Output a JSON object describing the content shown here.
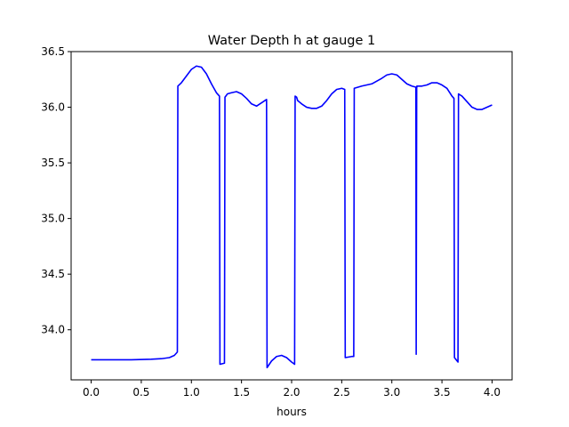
{
  "chart_data": {
    "type": "line",
    "title": "Water Depth h at gauge 1",
    "xlabel": "hours",
    "ylabel": "",
    "xlim": [
      -0.2,
      4.2
    ],
    "ylim": [
      33.55,
      36.5
    ],
    "x_ticks": [
      0.0,
      0.5,
      1.0,
      1.5,
      2.0,
      2.5,
      3.0,
      3.5,
      4.0
    ],
    "x_tick_labels": [
      "0.0",
      "0.5",
      "1.0",
      "1.5",
      "2.0",
      "2.5",
      "3.0",
      "3.5",
      "4.0"
    ],
    "y_ticks": [
      34.0,
      34.5,
      35.0,
      35.5,
      36.0,
      36.5
    ],
    "y_tick_labels": [
      "34.0",
      "34.5",
      "35.0",
      "35.5",
      "36.0",
      "36.5"
    ],
    "grid": false,
    "colors": {
      "series": "#0000ff"
    },
    "series": [
      {
        "name": "",
        "x": [
          0.0,
          0.2,
          0.4,
          0.6,
          0.7,
          0.78,
          0.83,
          0.86,
          0.865,
          0.9,
          0.95,
          1.0,
          1.05,
          1.1,
          1.15,
          1.2,
          1.25,
          1.28,
          1.285,
          1.33,
          1.335,
          1.36,
          1.4,
          1.45,
          1.5,
          1.55,
          1.6,
          1.65,
          1.7,
          1.75,
          1.755,
          1.8,
          1.85,
          1.9,
          1.95,
          2.0,
          2.03,
          2.035,
          2.05,
          2.06,
          2.1,
          2.15,
          2.2,
          2.25,
          2.3,
          2.35,
          2.4,
          2.45,
          2.5,
          2.53,
          2.535,
          2.6,
          2.62,
          2.625,
          2.7,
          2.8,
          2.9,
          2.95,
          3.0,
          3.05,
          3.1,
          3.15,
          3.2,
          3.24,
          3.243,
          3.248,
          3.25,
          3.3,
          3.35,
          3.4,
          3.45,
          3.5,
          3.55,
          3.6,
          3.62,
          3.625,
          3.66,
          3.665,
          3.7,
          3.75,
          3.8,
          3.85,
          3.9,
          3.95,
          4.0
        ],
        "y": [
          33.73,
          33.73,
          33.73,
          33.735,
          33.74,
          33.75,
          33.77,
          33.8,
          36.19,
          36.22,
          36.28,
          36.34,
          36.37,
          36.36,
          36.3,
          36.21,
          36.13,
          36.1,
          33.69,
          33.7,
          36.09,
          36.12,
          36.13,
          36.14,
          36.12,
          36.08,
          36.03,
          36.01,
          36.04,
          36.07,
          33.66,
          33.72,
          33.76,
          33.77,
          33.75,
          33.71,
          33.69,
          36.1,
          36.09,
          36.06,
          36.03,
          36.0,
          35.99,
          35.99,
          36.01,
          36.06,
          36.12,
          36.16,
          36.17,
          36.16,
          33.75,
          33.76,
          33.76,
          36.17,
          36.19,
          36.21,
          36.26,
          36.29,
          36.3,
          36.29,
          36.25,
          36.21,
          36.19,
          36.18,
          33.78,
          36.17,
          36.19,
          36.19,
          36.2,
          36.22,
          36.22,
          36.2,
          36.17,
          36.1,
          36.08,
          33.75,
          33.71,
          36.12,
          36.1,
          36.05,
          36.0,
          35.98,
          35.98,
          36.0,
          36.02
        ]
      }
    ]
  }
}
